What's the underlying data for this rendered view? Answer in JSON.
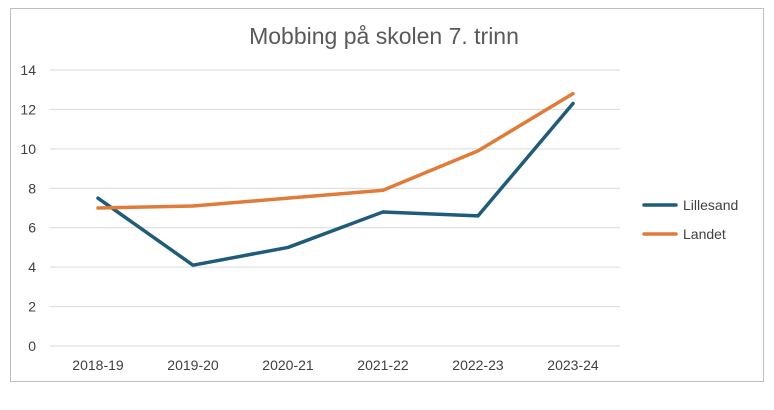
{
  "chart_data": {
    "type": "line",
    "title": "Mobbing på skolen 7. trinn",
    "categories": [
      "2018-19",
      "2019-20",
      "2020-21",
      "2021-22",
      "2022-23",
      "2023-24"
    ],
    "series": [
      {
        "name": "Lillesand",
        "color": "#1f5c7a",
        "values": [
          7.5,
          4.1,
          5.0,
          6.8,
          6.6,
          12.3
        ]
      },
      {
        "name": "Landet",
        "color": "#e07b39",
        "values": [
          7.0,
          7.1,
          7.5,
          7.9,
          9.9,
          12.8
        ]
      }
    ],
    "ylim": [
      0,
      14
    ],
    "yticks": [
      0,
      2,
      4,
      6,
      8,
      10,
      12,
      14
    ],
    "xlabel": "",
    "ylabel": "",
    "grid": true,
    "legend_position": "right"
  }
}
